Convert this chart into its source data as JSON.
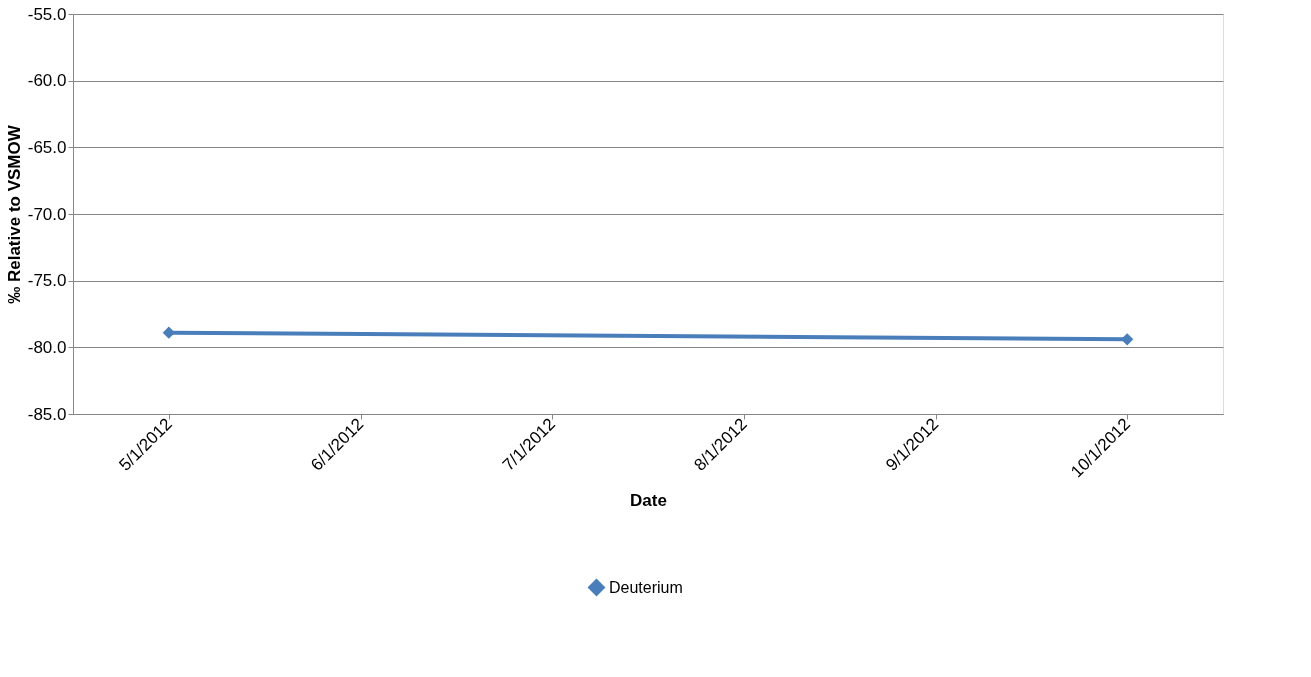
{
  "chart_data": {
    "type": "line",
    "xlabel": "Date",
    "ylabel": "‰ Relative to VSMOW",
    "categories": [
      "5/1/2012",
      "6/1/2012",
      "7/1/2012",
      "8/1/2012",
      "9/1/2012",
      "10/1/2012"
    ],
    "series": [
      {
        "name": "Deuterium",
        "color": "#4a7ebb",
        "values": [
          -78.9,
          null,
          null,
          null,
          null,
          -79.4
        ]
      }
    ],
    "ylim": [
      -85,
      -55
    ],
    "yticks": [
      {
        "value": -85,
        "label": "-85.0"
      },
      {
        "value": -80,
        "label": "-80.0"
      },
      {
        "value": -75,
        "label": "-75.0"
      },
      {
        "value": -70,
        "label": "-70.0"
      },
      {
        "value": -65,
        "label": "-65.0"
      },
      {
        "value": -60,
        "label": "-60.0"
      },
      {
        "value": -55,
        "label": "-55.0"
      }
    ],
    "grid": "y",
    "legend": "bottom",
    "marker": "diamond",
    "line_style": "solid"
  }
}
